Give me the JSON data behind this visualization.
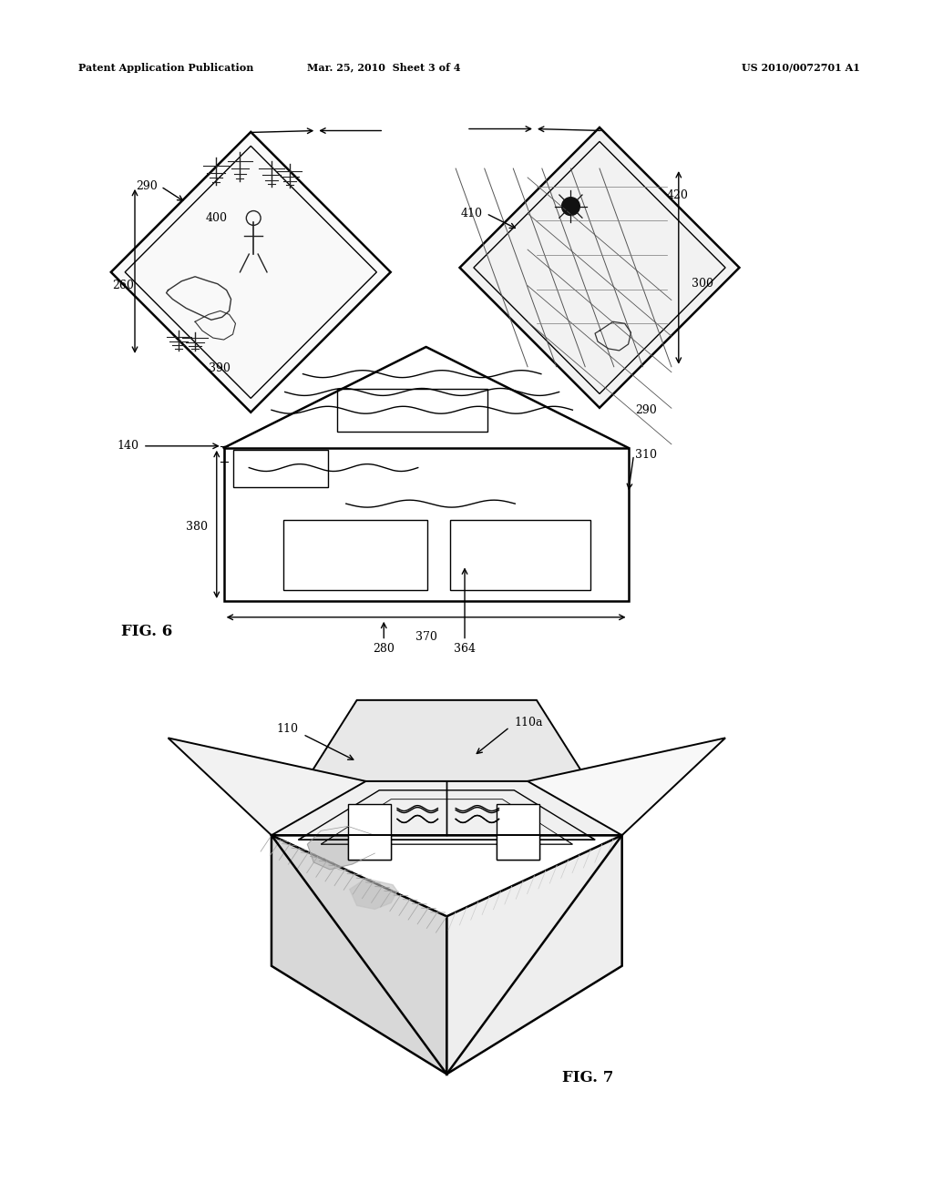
{
  "background_color": "#ffffff",
  "header_left": "Patent Application Publication",
  "header_center": "Mar. 25, 2010  Sheet 3 of 4",
  "header_right": "US 2010/0072701 A1",
  "fig6_label": "FIG. 6",
  "fig7_label": "FIG. 7",
  "label_fontsize": 9,
  "header_fontsize": 8,
  "fig_label_fontsize": 12
}
